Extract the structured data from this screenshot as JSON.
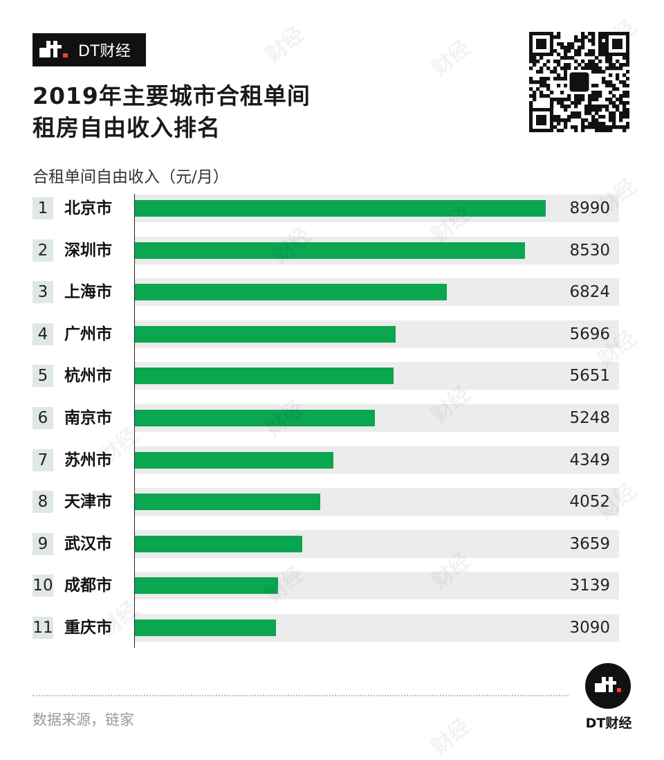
{
  "brand": {
    "badge_text": "DT财经",
    "footer_name": "DT财经",
    "watermark_text": "财经",
    "mark_color": "#f0432a"
  },
  "title_lines": [
    "2019年主要城市合租单间",
    "租房自由收入排名"
  ],
  "subtitle": "合租单间自由收入（元/月）",
  "source": "数据来源，链家",
  "chart_data": {
    "type": "bar",
    "orientation": "horizontal",
    "title": "2019年主要城市合租单间租房自由收入排名",
    "xlabel": "合租单间自由收入（元/月）",
    "ylabel": "",
    "xlim": [
      0,
      10590
    ],
    "grid": false,
    "bar_color": "#0aa650",
    "ranks": [
      "1",
      "2",
      "3",
      "4",
      "5",
      "6",
      "7",
      "8",
      "9",
      "10",
      "11"
    ],
    "categories": [
      "北京市",
      "深圳市",
      "上海市",
      "广州市",
      "杭州市",
      "南京市",
      "苏州市",
      "天津市",
      "武汉市",
      "成都市",
      "重庆市"
    ],
    "values": [
      8990,
      8530,
      6824,
      5696,
      5651,
      5248,
      4349,
      4052,
      3659,
      3139,
      3090
    ]
  }
}
